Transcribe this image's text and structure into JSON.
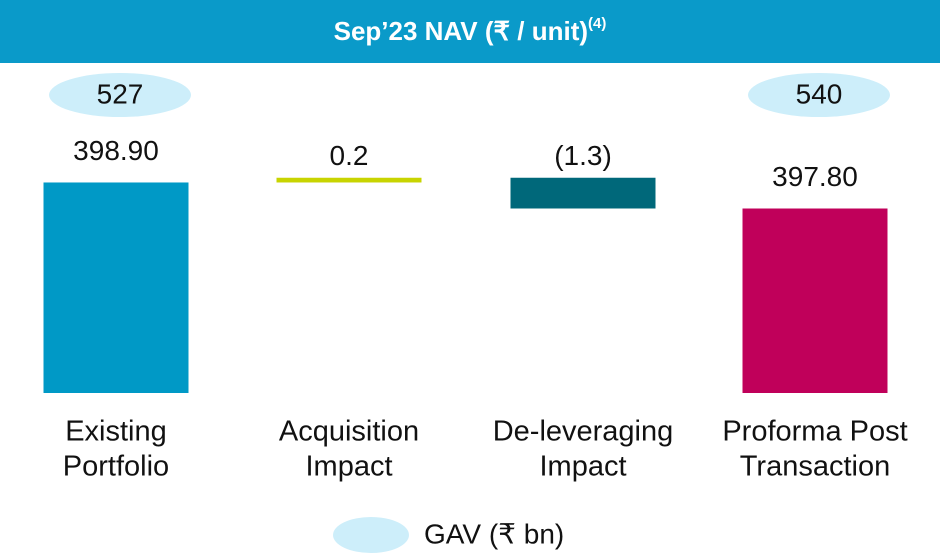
{
  "chart_data": {
    "type": "waterfall",
    "title": "Sep’23 NAV (₹ / unit)",
    "title_superscript": "(4)",
    "categories": [
      [
        "Existing",
        "Portfolio"
      ],
      [
        "Acquisition",
        "Impact"
      ],
      [
        "De-leveraging",
        "Impact"
      ],
      [
        "Proforma Post",
        "Transaction"
      ]
    ],
    "values": [
      398.9,
      0.2,
      -1.3,
      397.8
    ],
    "value_labels": [
      "398.90",
      "0.2",
      "(1.3)",
      "397.80"
    ],
    "is_total": [
      true,
      false,
      false,
      true
    ],
    "colors": [
      "#0099c6",
      "#c8d400",
      "#00687a",
      "#c0005a"
    ],
    "gav": [
      527,
      null,
      null,
      540
    ],
    "gav_color": "#cdeefa",
    "gav_legend": "GAV (₹ bn)",
    "header_color": "#0a9ac9",
    "ylim": [
      390,
      400.4
    ]
  }
}
